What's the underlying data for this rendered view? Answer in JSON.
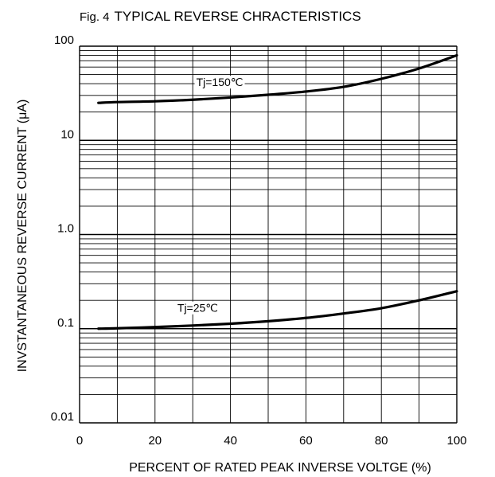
{
  "chart_data": {
    "type": "line",
    "title_prefix": "Fig. 4",
    "title": "TYPICAL REVERSE CHRACTERISTICS",
    "xlabel": "PERCENT OF RATED PEAK INVERSE VOLTGE  (%)",
    "ylabel": "INVSTANTANEOUS REVERSE CURRENT (μA)",
    "x_scale": "linear",
    "y_scale": "log",
    "xlim": [
      0,
      100
    ],
    "ylim": [
      0.01,
      100
    ],
    "x_ticks": [
      0,
      20,
      40,
      60,
      80,
      100
    ],
    "x_tick_labels": [
      "0",
      "20",
      "40",
      "60",
      "80",
      "100"
    ],
    "y_ticks": [
      0.01,
      0.1,
      1,
      10,
      100
    ],
    "y_tick_labels": [
      "0.01",
      "0.1",
      "1.0",
      "10",
      "100"
    ],
    "grid": true,
    "line_color": "#000000",
    "series": [
      {
        "name": "Tj=150℃",
        "x": [
          5,
          10,
          20,
          30,
          40,
          50,
          60,
          70,
          80,
          90,
          100
        ],
        "y": [
          25,
          25.5,
          26,
          27,
          28.5,
          30.5,
          33,
          37,
          45,
          58,
          80
        ]
      },
      {
        "name": "Tj=25℃",
        "x": [
          5,
          10,
          20,
          30,
          40,
          50,
          60,
          70,
          80,
          90,
          100
        ],
        "y": [
          0.1,
          0.101,
          0.104,
          0.108,
          0.113,
          0.12,
          0.13,
          0.145,
          0.165,
          0.2,
          0.25
        ]
      }
    ]
  }
}
